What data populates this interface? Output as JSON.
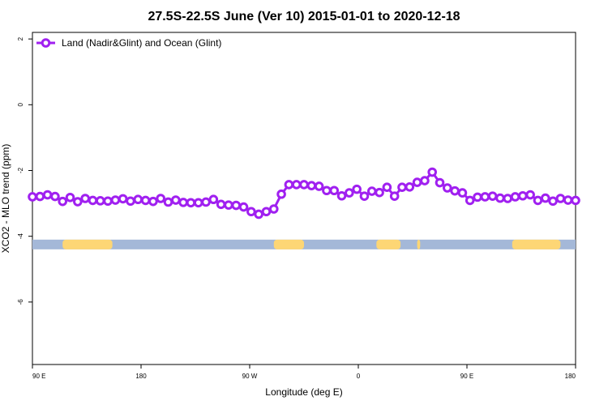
{
  "chart_data": {
    "type": "line",
    "title": "27.5S-22.5S June (Ver 10)   2015-01-01 to 2020-12-18",
    "xlabel": "Longitude (deg E)",
    "ylabel": "XCO2 - MLO trend (ppm)",
    "xlim": [
      90,
      450
    ],
    "ylim": [
      -7.9,
      2.2
    ],
    "x_ticks": [
      {
        "value": 90,
        "label": "90 E"
      },
      {
        "value": 162,
        "label": "180"
      },
      {
        "value": 234,
        "label": "90 W"
      },
      {
        "value": 306,
        "label": "0"
      },
      {
        "value": 378,
        "label": "90 E"
      },
      {
        "value": 450,
        "label": "180"
      }
    ],
    "y_ticks": [
      {
        "value": 2,
        "label": "2"
      },
      {
        "value": 0,
        "label": "0"
      },
      {
        "value": -2,
        "label": "-2"
      },
      {
        "value": -4,
        "label": "-4"
      },
      {
        "value": -6,
        "label": "-6"
      }
    ],
    "grid": false,
    "legend_position": "top-left",
    "series": [
      {
        "name": "Land (Nadir&Glint) and Ocean (Glint)",
        "color": "#a020f0",
        "x": [
          90,
          95,
          100,
          105,
          110,
          115,
          120,
          125,
          130,
          135,
          140,
          145,
          150,
          155,
          160,
          165,
          170,
          175,
          180,
          185,
          190,
          195,
          200,
          205,
          210,
          215,
          220,
          225,
          230,
          235,
          240,
          245,
          250,
          255,
          260,
          265,
          270,
          275,
          280,
          285,
          290,
          295,
          300,
          305,
          310,
          315,
          320,
          325,
          330,
          335,
          340,
          345,
          350,
          355,
          360,
          365,
          370,
          375,
          380,
          385,
          390,
          395,
          400,
          405,
          410,
          415,
          420,
          425,
          430,
          435,
          440,
          445,
          450
        ],
        "y": [
          -2.8,
          -2.79,
          -2.74,
          -2.79,
          -2.94,
          -2.82,
          -2.95,
          -2.85,
          -2.91,
          -2.92,
          -2.93,
          -2.9,
          -2.86,
          -2.93,
          -2.88,
          -2.91,
          -2.94,
          -2.85,
          -2.96,
          -2.9,
          -2.97,
          -2.98,
          -2.98,
          -2.96,
          -2.88,
          -3.03,
          -3.05,
          -3.06,
          -3.11,
          -3.25,
          -3.33,
          -3.25,
          -3.17,
          -2.72,
          -2.43,
          -2.43,
          -2.43,
          -2.46,
          -2.48,
          -2.61,
          -2.61,
          -2.77,
          -2.68,
          -2.57,
          -2.78,
          -2.63,
          -2.67,
          -2.51,
          -2.78,
          -2.51,
          -2.5,
          -2.36,
          -2.31,
          -2.05,
          -2.37,
          -2.53,
          -2.62,
          -2.68,
          -2.91,
          -2.81,
          -2.8,
          -2.78,
          -2.84,
          -2.85,
          -2.8,
          -2.77,
          -2.74,
          -2.91,
          -2.84,
          -2.93,
          -2.85,
          -2.9,
          -2.91
        ]
      }
    ],
    "surface_bar": {
      "y": -4.25,
      "ocean_color": "#a4b8d8",
      "land_color": "#fdd675",
      "land_segments": [
        [
          110,
          143
        ],
        [
          250,
          270
        ],
        [
          318,
          334
        ],
        [
          345,
          347
        ],
        [
          408,
          440
        ]
      ]
    }
  }
}
